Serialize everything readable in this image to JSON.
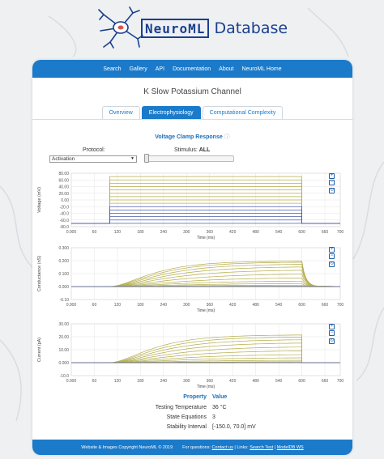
{
  "logo": {
    "brand": "NeuroML",
    "suffix": "Database"
  },
  "nav": {
    "items": [
      "Search",
      "Gallery",
      "API",
      "Documentation",
      "About",
      "NeuroML Home"
    ]
  },
  "page": {
    "title": "K Slow Potassium Channel"
  },
  "tabs": [
    {
      "label": "Overview",
      "active": false
    },
    {
      "label": "Electrophysiology",
      "active": true
    },
    {
      "label": "Computational Complexity",
      "active": false
    }
  ],
  "voltage_clamp": {
    "title": "Voltage Clamp Response",
    "help_icon": "question-circle-icon",
    "protocol_label": "Protocol:",
    "protocol_value": "Activation",
    "stimulus_label": "Stimulus:",
    "stimulus_value": "ALL"
  },
  "zoom_controls": [
    "+",
    "−",
    "↻"
  ],
  "colors": {
    "accent": "#1b7ac9",
    "trace_gold": "#b5ad4a",
    "trace_blue": "#4a5aa8"
  },
  "chart_data": [
    {
      "type": "line",
      "xlabel": "Time (ms)",
      "ylabel": "Voltage (mV)",
      "xlim": [
        0,
        700
      ],
      "ylim": [
        -80,
        80
      ],
      "x_ticks": [
        "0.000",
        "60",
        "120",
        "180",
        "240",
        "300",
        "360",
        "420",
        "480",
        "540",
        "600",
        "660",
        "700"
      ],
      "y_ticks": [
        "80.00",
        "60.00",
        "40.00",
        "20.00",
        "0.00",
        "-20.0",
        "-40.0",
        "-60.0",
        "-80.0"
      ],
      "step_start": 100,
      "step_end": 600,
      "holding": -70,
      "levels": [
        70,
        60,
        50,
        40,
        30,
        20,
        10,
        0,
        -10,
        -20,
        -30,
        -40,
        -50,
        -60,
        -70
      ]
    },
    {
      "type": "line",
      "xlabel": "Time (ms)",
      "ylabel": "Conductance (nS)",
      "xlim": [
        0,
        700
      ],
      "ylim": [
        -0.1,
        0.3
      ],
      "x_ticks": [
        "0.000",
        "60",
        "120",
        "180",
        "240",
        "300",
        "360",
        "420",
        "480",
        "540",
        "600",
        "660",
        "700"
      ],
      "y_ticks": [
        "0.300",
        "0.200",
        "0.100",
        "0.000",
        "-0.10"
      ],
      "step_start": 100,
      "step_end": 600,
      "steady": [
        0.198,
        0.19,
        0.175,
        0.155,
        0.13,
        0.1,
        0.07,
        0.045,
        0.025,
        0.012,
        0.005
      ]
    },
    {
      "type": "line",
      "xlabel": "Time (ms)",
      "ylabel": "Current (pA)",
      "xlim": [
        0,
        700
      ],
      "ylim": [
        -10,
        30
      ],
      "x_ticks": [
        "0.000",
        "60",
        "120",
        "180",
        "240",
        "300",
        "360",
        "420",
        "480",
        "540",
        "600",
        "660",
        "700"
      ],
      "y_ticks": [
        "30.00",
        "20.00",
        "10.00",
        "0.000",
        "-10.0"
      ],
      "step_start": 100,
      "step_end": 600,
      "steady": [
        21.5,
        20,
        18,
        15.5,
        12.5,
        9.5,
        6.5,
        4,
        2,
        0.8,
        0.2
      ]
    }
  ],
  "properties": {
    "header_key": "Property",
    "header_value": "Value",
    "rows": [
      {
        "key": "Testing Temperature",
        "value": "36 °C"
      },
      {
        "key": "State Equations",
        "value": "3"
      },
      {
        "key": "Stability Interval",
        "value": "[-150.0, 70.0] mV"
      }
    ]
  },
  "footer": {
    "copyright": "Website & Images Copyright NeuroML © 2019",
    "questions": "For questions:",
    "contact": "Contact us",
    "links_label": "Links:",
    "search_test": "Search Test",
    "modeldb": "ModelDB WS",
    "sep": "|"
  }
}
